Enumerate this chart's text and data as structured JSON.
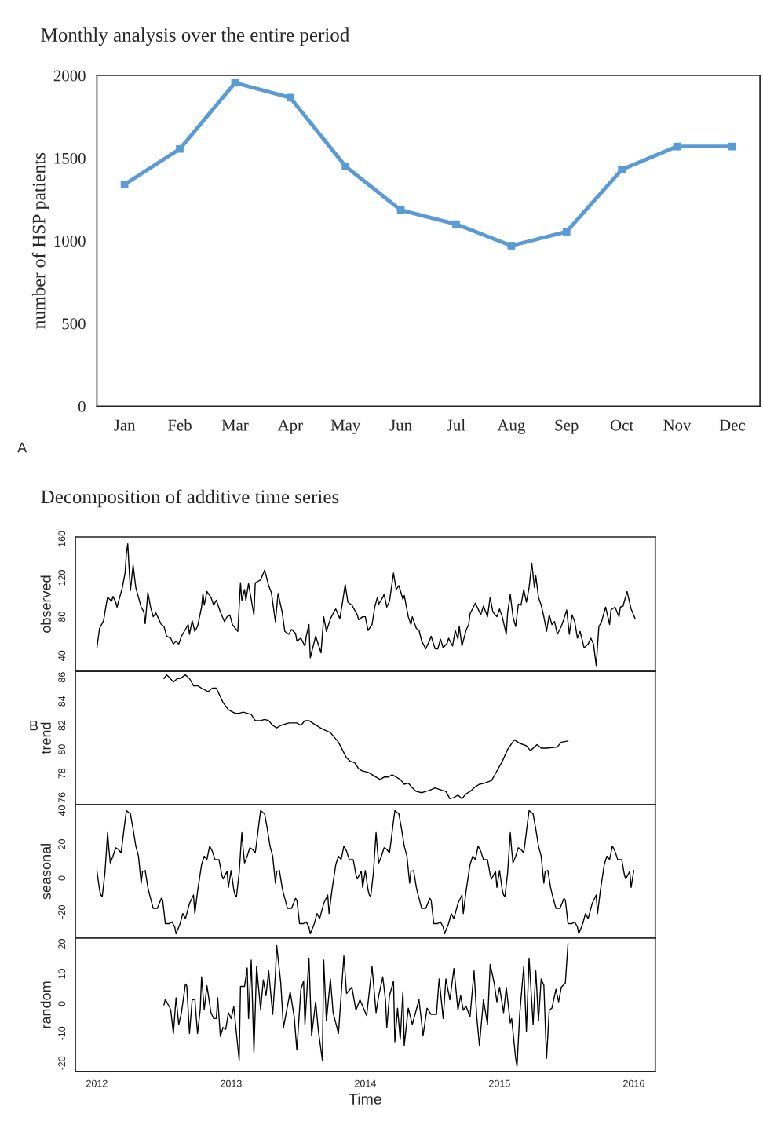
{
  "chart_data": [
    {
      "type": "line",
      "title": "Monthly analysis over the entire period",
      "ylabel": "number of HSP patients",
      "annotations": [
        "A"
      ],
      "categories": [
        "Jan",
        "Feb",
        "Mar",
        "Apr",
        "May",
        "Jun",
        "Jul",
        "Aug",
        "Sep",
        "Oct",
        "Nov",
        "Dec"
      ],
      "series": [
        {
          "color": "#5b9bd5",
          "values": [
            1340,
            1555,
            1955,
            1865,
            1450,
            1185,
            1100,
            970,
            1055,
            1430,
            1570,
            1570
          ]
        }
      ],
      "marker": "square",
      "ylim": [
        0,
        2000
      ],
      "yticks": [
        0,
        500,
        1000,
        1500,
        2000
      ]
    },
    {
      "type": "line",
      "title": "Decomposition of additive time series",
      "ylabel": "observed",
      "annotations": [
        "B"
      ],
      "tick_labels": "y",
      "xlim": [
        2011.84,
        2016.16
      ],
      "ylim": [
        24,
        162
      ],
      "yticks": [
        40,
        80,
        120,
        160
      ],
      "series": [
        {
          "color": "#000000",
          "x": [
            2012,
            2012.02,
            2012.05,
            2012.07,
            2012.08,
            2012.11,
            2012.12,
            2012.14,
            2012.15,
            2012.17,
            2012.19,
            2012.21,
            2012.22,
            2012.23,
            2012.24,
            2012.25,
            2012.27,
            2012.29,
            2012.31,
            2012.33,
            2012.35,
            2012.36,
            2012.38,
            2012.4,
            2012.42,
            2012.44,
            2012.46,
            2012.48,
            2012.5,
            2012.52,
            2012.55,
            2012.57,
            2012.59,
            2012.61,
            2012.63,
            2012.66,
            2012.68,
            2012.69,
            2012.71,
            2012.73,
            2012.75,
            2012.78,
            2012.79,
            2012.8,
            2012.82,
            2012.85,
            2012.87,
            2012.89,
            2012.92,
            2012.95,
            2012.97,
            2012.99,
            2013.01,
            2013.05,
            2013.07,
            2013.08,
            2013.1,
            2013.11,
            2013.13,
            2013.17,
            2013.18,
            2013.22,
            2013.25,
            2013.28,
            2013.3,
            2013.33,
            2013.35,
            2013.38,
            2013.4,
            2013.43,
            2013.45,
            2013.48,
            2013.49,
            2013.52,
            2013.55,
            2013.56,
            2013.58,
            2013.59,
            2013.63,
            2013.67,
            2013.69,
            2013.71,
            2013.74,
            2013.77,
            2013.78,
            2013.81,
            2013.83,
            2013.85,
            2013.87,
            2013.9,
            2013.94,
            2013.95,
            2013.98,
            2014.0,
            2014.02,
            2014.05,
            2014.07,
            2014.09,
            2014.1,
            2014.13,
            2014.14,
            2014.16,
            2014.18,
            2014.21,
            2014.23,
            2014.25,
            2014.28,
            2014.29,
            2014.32,
            2014.34,
            2014.35,
            2014.38,
            2014.4,
            2014.42,
            2014.45,
            2014.48,
            2014.49,
            2014.52,
            2014.54,
            2014.56,
            2014.58,
            2014.61,
            2014.62,
            2014.65,
            2014.67,
            2014.69,
            2014.7,
            2014.72,
            2014.75,
            2014.77,
            2014.78,
            2014.82,
            2014.84,
            2014.86,
            2014.88,
            2014.9,
            2014.91,
            2014.93,
            2014.95,
            2014.98,
            2015.0,
            2015.02,
            2015.05,
            2015.06,
            2015.08,
            2015.1,
            2015.12,
            2015.14,
            2015.16,
            2015.18,
            2015.2,
            2015.22,
            2015.24,
            2015.26,
            2015.27,
            2015.29,
            2015.31,
            2015.33,
            2015.35,
            2015.37,
            2015.39,
            2015.41,
            2015.43,
            2015.46,
            2015.48,
            2015.5,
            2015.52,
            2015.54,
            2015.56,
            2015.58,
            2015.6,
            2015.63,
            2015.66,
            2015.68,
            2015.7,
            2015.72,
            2015.74,
            2015.76,
            2015.79,
            2015.82,
            2015.83,
            2015.86,
            2015.89,
            2015.9,
            2015.92,
            2015.95,
            2015.98,
            2016.01
          ],
          "values": [
            48,
            68,
            76,
            93,
            100,
            96,
            101,
            95,
            90,
            100,
            110,
            125,
            145,
            155,
            130,
            107,
            133,
            110,
            100,
            90,
            85,
            73,
            105,
            90,
            80,
            84,
            78,
            72,
            70,
            60,
            58,
            52,
            55,
            52,
            60,
            67,
            72,
            62,
            76,
            65,
            70,
            90,
            104,
            92,
            106,
            100,
            92,
            97,
            85,
            75,
            80,
            82,
            72,
            65,
            115,
            97,
            108,
            97,
            114,
            82,
            115,
            118,
            128,
            112,
            105,
            75,
            104,
            85,
            65,
            62,
            67,
            63,
            55,
            58,
            50,
            60,
            72,
            38,
            60,
            43,
            80,
            65,
            78,
            86,
            88,
            78,
            95,
            113,
            95,
            92,
            82,
            77,
            80,
            80,
            66,
            72,
            90,
            100,
            93,
            100,
            103,
            90,
            96,
            125,
            108,
            112,
            98,
            102,
            80,
            72,
            80,
            68,
            66,
            55,
            47,
            56,
            60,
            47,
            47,
            57,
            48,
            53,
            58,
            50,
            66,
            57,
            70,
            50,
            66,
            72,
            83,
            94,
            88,
            82,
            91,
            84,
            80,
            100,
            85,
            80,
            88,
            80,
            62,
            84,
            103,
            80,
            70,
            93,
            92,
            108,
            95,
            110,
            135,
            110,
            122,
            100,
            92,
            80,
            65,
            82,
            72,
            75,
            62,
            70,
            78,
            87,
            62,
            82,
            75,
            58,
            65,
            48,
            52,
            58,
            52,
            30,
            70,
            75,
            90,
            72,
            87,
            90,
            80,
            90,
            91,
            106,
            88,
            78
          ]
        }
      ]
    },
    {
      "type": "line",
      "ylabel": "trend",
      "tick_labels": "y",
      "xlim": [
        2011.84,
        2016.16
      ],
      "ylim": [
        75.4,
        86.5
      ],
      "yticks": [
        76,
        78,
        80,
        82,
        84,
        86
      ],
      "series": [
        {
          "color": "#000000",
          "x": [
            2012.5,
            2012.52,
            2012.54,
            2012.57,
            2012.6,
            2012.62,
            2012.66,
            2012.69,
            2012.72,
            2012.75,
            2012.78,
            2012.83,
            2012.86,
            2012.89,
            2012.94,
            2012.98,
            2013.03,
            2013.06,
            2013.09,
            2013.12,
            2013.15,
            2013.18,
            2013.22,
            2013.25,
            2013.28,
            2013.31,
            2013.34,
            2013.37,
            2013.43,
            2013.49,
            2013.52,
            2013.55,
            2013.58,
            2013.62,
            2013.68,
            2013.74,
            2013.8,
            2013.86,
            2013.89,
            2013.92,
            2013.95,
            2013.98,
            2014.02,
            2014.08,
            2014.11,
            2014.14,
            2014.17,
            2014.2,
            2014.23,
            2014.26,
            2014.29,
            2014.32,
            2014.35,
            2014.38,
            2014.42,
            2014.45,
            2014.48,
            2014.52,
            2014.57,
            2014.6,
            2014.63,
            2014.66,
            2014.69,
            2014.72,
            2014.75,
            2014.78,
            2014.82,
            2014.85,
            2014.89,
            2014.94,
            2014.97,
            2015.02,
            2015.06,
            2015.11,
            2015.15,
            2015.2,
            2015.23,
            2015.28,
            2015.31,
            2015.35,
            2015.43,
            2015.46,
            2015.51
          ],
          "values": [
            85.9,
            86.2,
            86.0,
            85.6,
            85.9,
            85.9,
            86.2,
            85.9,
            85.3,
            85.3,
            85.1,
            84.8,
            85.1,
            85.1,
            83.9,
            83.3,
            83.0,
            83.0,
            83.1,
            83.0,
            82.9,
            82.4,
            82.4,
            82.5,
            82.4,
            82.0,
            81.8,
            82.0,
            82.2,
            82.2,
            82.0,
            82.4,
            82.4,
            82.1,
            81.7,
            81.4,
            80.6,
            79.3,
            79.0,
            78.9,
            78.4,
            78.2,
            78.1,
            77.7,
            77.5,
            77.7,
            77.7,
            77.9,
            77.7,
            77.5,
            77.1,
            77.2,
            76.8,
            76.5,
            76.4,
            76.5,
            76.6,
            76.8,
            76.6,
            76.5,
            75.9,
            76.0,
            76.2,
            75.9,
            76.3,
            76.5,
            76.9,
            77.1,
            77.2,
            77.4,
            78.0,
            79.0,
            80.0,
            80.8,
            80.5,
            80.3,
            79.9,
            80.4,
            80.1,
            80.1,
            80.2,
            80.6,
            80.7
          ]
        }
      ]
    },
    {
      "type": "line",
      "ylabel": "seasonal",
      "tick_labels": "y",
      "xlim": [
        2011.84,
        2016.16
      ],
      "ylim": [
        -35.6,
        43.5
      ],
      "yticks": [
        -20,
        0,
        20,
        40
      ],
      "series": [
        {
          "color": "#000000",
          "x": [
            2012,
            2012.02,
            2012.03,
            2012.04,
            2012.06,
            2012.08,
            2012.09,
            2012.1,
            2012.12,
            2012.14,
            2012.16,
            2012.18,
            2012.19,
            2012.21,
            2012.22,
            2012.25,
            2012.27,
            2012.29,
            2012.31,
            2012.33,
            2012.34,
            2012.36,
            2012.38,
            2012.39,
            2012.42,
            2012.45,
            2012.48,
            2012.49,
            2012.51,
            2012.54,
            2012.56,
            2012.58,
            2012.59,
            2012.62,
            2012.64,
            2012.66,
            2012.67,
            2012.69,
            2012.72,
            2012.73,
            2012.75,
            2012.78,
            2012.8,
            2012.82,
            2012.84,
            2012.86,
            2012.88,
            2012.91,
            2012.93,
            2012.94,
            2012.97,
            2012.98,
            2013,
            2013.02,
            2013.03,
            2013.04,
            2013.06,
            2013.08,
            2013.09,
            2013.1,
            2013.12,
            2013.14,
            2013.16,
            2013.18,
            2013.19,
            2013.21,
            2013.22,
            2013.25,
            2013.27,
            2013.29,
            2013.31,
            2013.33,
            2013.34,
            2013.36,
            2013.38,
            2013.39,
            2013.42,
            2013.45,
            2013.48,
            2013.49,
            2013.51,
            2013.54,
            2013.56,
            2013.58,
            2013.59,
            2013.62,
            2013.64,
            2013.66,
            2013.67,
            2013.69,
            2013.72,
            2013.73,
            2013.75,
            2013.78,
            2013.8,
            2013.82,
            2013.84,
            2013.86,
            2013.88,
            2013.91,
            2013.93,
            2013.94,
            2013.97,
            2013.98,
            2014,
            2014.02,
            2014.03,
            2014.04,
            2014.06,
            2014.08,
            2014.09,
            2014.1,
            2014.12,
            2014.14,
            2014.16,
            2014.18,
            2014.19,
            2014.21,
            2014.22,
            2014.25,
            2014.27,
            2014.29,
            2014.31,
            2014.33,
            2014.34,
            2014.36,
            2014.38,
            2014.39,
            2014.42,
            2014.45,
            2014.48,
            2014.49,
            2014.51,
            2014.54,
            2014.56,
            2014.58,
            2014.59,
            2014.62,
            2014.64,
            2014.66,
            2014.67,
            2014.69,
            2014.72,
            2014.73,
            2014.75,
            2014.78,
            2014.8,
            2014.82,
            2014.84,
            2014.86,
            2014.88,
            2014.91,
            2014.93,
            2014.94,
            2014.97,
            2014.98,
            2015,
            2015.02,
            2015.03,
            2015.04,
            2015.06,
            2015.08,
            2015.09,
            2015.1,
            2015.12,
            2015.14,
            2015.16,
            2015.18,
            2015.19,
            2015.21,
            2015.22,
            2015.25,
            2015.27,
            2015.29,
            2015.31,
            2015.33,
            2015.34,
            2015.36,
            2015.38,
            2015.39,
            2015.42,
            2015.45,
            2015.48,
            2015.49,
            2015.51,
            2015.54,
            2015.56,
            2015.58,
            2015.59,
            2015.62,
            2015.64,
            2015.66,
            2015.67,
            2015.69,
            2015.72,
            2015.73,
            2015.75,
            2015.78,
            2015.8,
            2015.82,
            2015.84,
            2015.86,
            2015.88,
            2015.91,
            2015.93,
            2015.94,
            2015.97,
            2015.98,
            2016
          ],
          "values": [
            4.5,
            -7,
            -10,
            -11,
            3,
            27,
            17,
            9,
            13,
            18,
            17,
            15,
            21,
            34,
            40,
            38,
            29,
            19,
            13,
            -3,
            4,
            4.5,
            -5.5,
            -9,
            -18,
            -18,
            -12,
            -13,
            -27,
            -27,
            -26,
            -29,
            -33,
            -27,
            -21,
            -24,
            -21,
            -15,
            -10,
            -21,
            -8,
            8,
            13,
            11,
            19,
            16,
            11,
            11,
            2,
            -0.5,
            4,
            -5.5,
            4.5,
            -7,
            -10,
            -11,
            3,
            27,
            17,
            9,
            13,
            18,
            17,
            15,
            21,
            34,
            40,
            38,
            29,
            19,
            13,
            -3,
            4,
            4.5,
            -5.5,
            -9,
            -18,
            -18,
            -12,
            -13,
            -27,
            -27,
            -26,
            -29,
            -33,
            -27,
            -21,
            -24,
            -21,
            -15,
            -10,
            -21,
            -8,
            8,
            13,
            11,
            19,
            16,
            11,
            11,
            2,
            -0.5,
            4,
            -5.5,
            4.5,
            -7,
            -10,
            -11,
            3,
            27,
            17,
            9,
            13,
            18,
            17,
            15,
            21,
            34,
            40,
            38,
            29,
            19,
            13,
            -3,
            4,
            4.5,
            -5.5,
            -9,
            -18,
            -18,
            -12,
            -13,
            -27,
            -27,
            -26,
            -29,
            -33,
            -27,
            -21,
            -24,
            -21,
            -15,
            -10,
            -21,
            -8,
            8,
            13,
            11,
            19,
            16,
            11,
            11,
            2,
            -0.5,
            4,
            -5.5,
            4.5,
            -7,
            -10,
            -11,
            3,
            27,
            17,
            9,
            13,
            18,
            17,
            15,
            21,
            34,
            40,
            38,
            29,
            19,
            13,
            -3,
            4,
            4.5,
            -5.5,
            -9,
            -18,
            -18,
            -12,
            -13,
            -27,
            -27,
            -26,
            -29,
            -33,
            -27,
            -21,
            -24,
            -21,
            -15,
            -10,
            -21,
            -8,
            8,
            13,
            11,
            19,
            16,
            11,
            11,
            2,
            -0.5,
            4,
            -5.5,
            4.5
          ]
        }
      ]
    },
    {
      "type": "line",
      "ylabel": "random",
      "xlabel": "Time",
      "xlim": [
        2011.84,
        2016.16
      ],
      "xticks": [
        2012,
        2013,
        2014,
        2015,
        2016
      ],
      "ylim": [
        -22.8,
        22
      ],
      "yticks": [
        -20,
        -10,
        0,
        10,
        20
      ],
      "series": [
        {
          "color": "#000000",
          "x": [
            2012.5,
            2012.51,
            2012.55,
            2012.57,
            2012.59,
            2012.61,
            2012.63,
            2012.66,
            2012.67,
            2012.69,
            2012.71,
            2012.73,
            2012.75,
            2012.77,
            2012.78,
            2012.8,
            2012.82,
            2012.85,
            2012.87,
            2012.89,
            2012.9,
            2012.92,
            2012.94,
            2012.96,
            2012.98,
            2013.0,
            2013.02,
            2013.06,
            2013.07,
            2013.1,
            2013.12,
            2013.13,
            2013.15,
            2013.17,
            2013.19,
            2013.22,
            2013.24,
            2013.26,
            2013.28,
            2013.31,
            2013.33,
            2013.34,
            2013.37,
            2013.39,
            2013.44,
            2013.47,
            2013.49,
            2013.52,
            2013.54,
            2013.55,
            2013.58,
            2013.6,
            2013.63,
            2013.65,
            2013.68,
            2013.69,
            2013.71,
            2013.74,
            2013.76,
            2013.8,
            2013.84,
            2013.86,
            2013.9,
            2013.93,
            2013.96,
            2014.01,
            2014.05,
            2014.08,
            2014.1,
            2014.13,
            2014.15,
            2014.16,
            2014.18,
            2014.21,
            2014.22,
            2014.24,
            2014.26,
            2014.28,
            2014.29,
            2014.32,
            2014.35,
            2014.4,
            2014.43,
            2014.46,
            2014.49,
            2014.53,
            2014.55,
            2014.58,
            2014.6,
            2014.63,
            2014.66,
            2014.69,
            2014.71,
            2014.73,
            2014.75,
            2014.78,
            2014.81,
            2014.83,
            2014.85,
            2014.88,
            2014.91,
            2014.93,
            2014.96,
            2014.98,
            2015.0,
            2015.03,
            2015.05,
            2015.08,
            2015.09,
            2015.12,
            2015.13,
            2015.15,
            2015.18,
            2015.2,
            2015.22,
            2015.25,
            2015.27,
            2015.29,
            2015.31,
            2015.33,
            2015.35,
            2015.37,
            2015.39,
            2015.42,
            2015.44,
            2015.46,
            2015.49,
            2015.51
          ],
          "values": [
            -0.4,
            1.5,
            -2,
            -10,
            2,
            -7,
            -3,
            6.6,
            6,
            -10,
            1.3,
            1.5,
            -10,
            -2,
            9,
            -2,
            6,
            -3,
            -5,
            -5,
            2,
            -11,
            -8,
            -8.6,
            -3,
            -5,
            -1,
            -19,
            5.8,
            5.8,
            12,
            -5,
            14.6,
            -16.3,
            12.5,
            -2,
            8,
            2.7,
            11,
            -3.6,
            9.7,
            19.5,
            7,
            -8,
            4,
            -4.4,
            -15.6,
            4.8,
            7.6,
            -7,
            15.3,
            -10.7,
            0.6,
            -9,
            -19,
            14.6,
            -5.8,
            8.3,
            -3,
            -10,
            16,
            3.4,
            5.5,
            -2.2,
            1.3,
            -4,
            12.5,
            -3,
            2.7,
            9,
            1.3,
            -8,
            2.7,
            7.6,
            -12.8,
            -1.5,
            -12,
            4,
            -14,
            -1.5,
            -7,
            1.3,
            -10.7,
            -1.5,
            -3.6,
            -3.6,
            8.3,
            -5,
            8.3,
            1.3,
            11.8,
            -2.2,
            2.7,
            -2.2,
            -0.8,
            -4.4,
            11,
            -4.4,
            -14,
            1.3,
            -7,
            13.2,
            6.9,
            0.6,
            5.5,
            -3,
            5.5,
            -6.5,
            -5,
            -18.4,
            -21,
            -3.6,
            12.5,
            -9.3,
            15.3,
            -7,
            11,
            -5.8,
            8.3,
            6.2,
            -18.4,
            -2.2,
            -1.5,
            4.8,
            0.6,
            5.5,
            6.9,
            20.2
          ]
        }
      ]
    }
  ]
}
